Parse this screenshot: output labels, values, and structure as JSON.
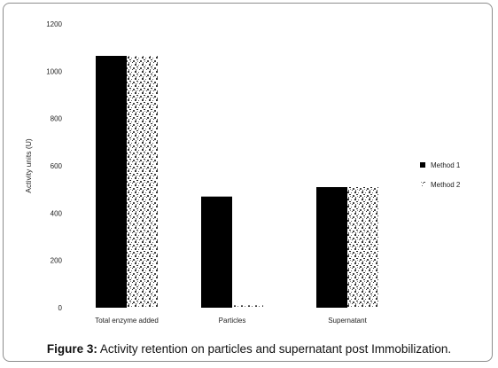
{
  "chart_data": {
    "type": "bar",
    "title": "",
    "xlabel": "",
    "ylabel": "Activity units (U)",
    "ylim": [
      0,
      1200
    ],
    "yticks": [
      0,
      200,
      400,
      600,
      800,
      1000,
      1200
    ],
    "categories": [
      "Total enzyme added",
      "Particles",
      "Supernatant"
    ],
    "series": [
      {
        "name": "Method 1",
        "values": [
          1065,
          470,
          510
        ],
        "color": "#000000",
        "fill": "solid"
      },
      {
        "name": "Method 2",
        "values": [
          1065,
          10,
          510
        ],
        "color": "#555555",
        "fill": "speckled"
      }
    ],
    "legend": "right",
    "grid": false
  },
  "caption": {
    "label": "Figure 3:",
    "text": " Activity retention on particles and supernatant post Immobilization."
  }
}
